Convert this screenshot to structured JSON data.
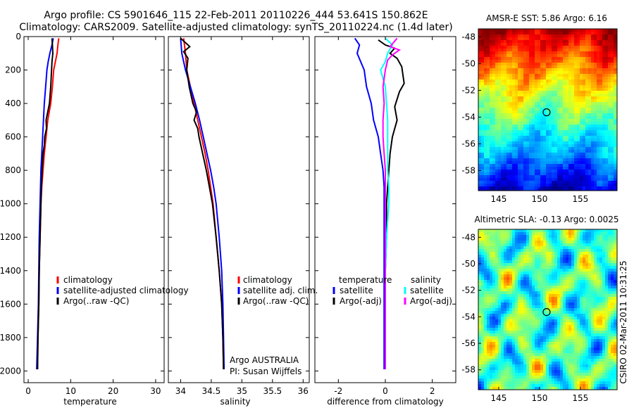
{
  "header": {
    "line1": "Argo profile: CS 5901646_115 22-Feb-2011 20110226_444 53.641S 150.862E",
    "line2": "Climatology: CARS2009. Satellite-adjusted climatology: synTS_20110224.nc (1.4d later)"
  },
  "colors": {
    "red": "#ff0000",
    "blue": "#0000ff",
    "black": "#000000",
    "cyan": "#00ffff",
    "magenta": "#ff00ff"
  },
  "chart_data": [
    {
      "type": "line",
      "id": "temperature",
      "xlabel": "temperature",
      "ylabel": "",
      "xlim": [
        -1,
        32
      ],
      "ylim": [
        2070,
        0
      ],
      "xticks": [
        0,
        10,
        20,
        30
      ],
      "xtick_labels": [
        "0",
        "10",
        "20",
        "30"
      ],
      "yticks": [
        0,
        200,
        400,
        600,
        800,
        1000,
        1200,
        1400,
        1600,
        1800,
        2000
      ],
      "ytick_labels": [
        "0",
        "200",
        "400",
        "600",
        "800",
        "1000",
        "1200",
        "1400",
        "1600",
        "1800",
        "2000"
      ],
      "legend": [
        {
          "label": "climatology",
          "color": "red"
        },
        {
          "label": "satellite-adjusted climatology",
          "color": "blue"
        },
        {
          "label": "Argo(..raw -QC)",
          "color": "black"
        }
      ],
      "series": [
        {
          "name": "climatology",
          "color": "red",
          "points": [
            [
              7.2,
              10
            ],
            [
              7.0,
              50
            ],
            [
              6.8,
              100
            ],
            [
              6.4,
              150
            ],
            [
              6.0,
              200
            ],
            [
              5.7,
              300
            ],
            [
              5.3,
              400
            ],
            [
              4.6,
              500
            ],
            [
              4.2,
              600
            ],
            [
              3.8,
              700
            ],
            [
              3.5,
              800
            ],
            [
              3.2,
              900
            ],
            [
              3.0,
              1000
            ],
            [
              2.8,
              1200
            ],
            [
              2.6,
              1400
            ],
            [
              2.5,
              1600
            ],
            [
              2.3,
              1800
            ],
            [
              2.2,
              1990
            ]
          ]
        },
        {
          "name": "satellite-adjusted climatology",
          "color": "blue",
          "points": [
            [
              5.9,
              10
            ],
            [
              5.6,
              50
            ],
            [
              5.1,
              100
            ],
            [
              4.7,
              150
            ],
            [
              4.4,
              200
            ],
            [
              4.1,
              300
            ],
            [
              3.8,
              400
            ],
            [
              3.6,
              500
            ],
            [
              3.4,
              600
            ],
            [
              3.2,
              700
            ],
            [
              3.0,
              800
            ],
            [
              2.9,
              900
            ],
            [
              2.8,
              1000
            ],
            [
              2.6,
              1200
            ],
            [
              2.5,
              1400
            ],
            [
              2.4,
              1600
            ],
            [
              2.2,
              1800
            ],
            [
              2.0,
              1990
            ]
          ]
        },
        {
          "name": "Argo(..raw -QC)",
          "color": "black",
          "points": [
            [
              5.6,
              10
            ],
            [
              5.7,
              50
            ],
            [
              5.8,
              100
            ],
            [
              5.6,
              150
            ],
            [
              5.5,
              200
            ],
            [
              5.3,
              300
            ],
            [
              5.0,
              400
            ],
            [
              4.6,
              450
            ],
            [
              4.2,
              500
            ],
            [
              4.3,
              550
            ],
            [
              3.9,
              600
            ],
            [
              3.8,
              650
            ],
            [
              3.5,
              700
            ],
            [
              3.3,
              800
            ],
            [
              3.1,
              900
            ],
            [
              3.0,
              1000
            ],
            [
              2.8,
              1200
            ],
            [
              2.6,
              1400
            ],
            [
              2.5,
              1600
            ],
            [
              2.3,
              1800
            ],
            [
              2.2,
              1990
            ]
          ]
        }
      ]
    },
    {
      "type": "line",
      "id": "salinity",
      "xlabel": "salinity",
      "ylabel": "",
      "xlim": [
        33.8,
        36.1
      ],
      "ylim": [
        2070,
        0
      ],
      "xticks": [
        34,
        34.5,
        35,
        35.5,
        36
      ],
      "xtick_labels": [
        "34",
        "34.5",
        "35",
        "35.5",
        "36"
      ],
      "yticks": [
        0,
        200,
        400,
        600,
        800,
        1000,
        1200,
        1400,
        1600,
        1800,
        2000
      ],
      "ytick_labels": [],
      "legend": [
        {
          "label": "climatology",
          "color": "red"
        },
        {
          "label": "satellite adj. clim.",
          "color": "blue"
        },
        {
          "label": "Argo(..raw -QC)",
          "color": "black"
        }
      ],
      "annotations": [
        "Argo AUSTRALIA",
        "PI: Susan Wijffels"
      ],
      "series": [
        {
          "name": "climatology",
          "color": "red",
          "points": [
            [
              34.05,
              10
            ],
            [
              34.08,
              100
            ],
            [
              34.1,
              200
            ],
            [
              34.16,
              300
            ],
            [
              34.22,
              400
            ],
            [
              34.28,
              500
            ],
            [
              34.34,
              600
            ],
            [
              34.4,
              700
            ],
            [
              34.45,
              800
            ],
            [
              34.49,
              900
            ],
            [
              34.53,
              1000
            ],
            [
              34.58,
              1200
            ],
            [
              34.63,
              1400
            ],
            [
              34.67,
              1600
            ],
            [
              34.69,
              1800
            ],
            [
              34.7,
              1990
            ]
          ]
        },
        {
          "name": "satellite adj. clim.",
          "color": "blue",
          "points": [
            [
              34.0,
              10
            ],
            [
              34.02,
              100
            ],
            [
              34.08,
              200
            ],
            [
              34.16,
              300
            ],
            [
              34.24,
              400
            ],
            [
              34.31,
              500
            ],
            [
              34.37,
              600
            ],
            [
              34.43,
              700
            ],
            [
              34.49,
              800
            ],
            [
              34.54,
              900
            ],
            [
              34.58,
              1000
            ],
            [
              34.63,
              1200
            ],
            [
              34.67,
              1400
            ],
            [
              34.69,
              1600
            ],
            [
              34.7,
              1800
            ],
            [
              34.71,
              1990
            ]
          ]
        },
        {
          "name": "Argo(..raw -QC)",
          "color": "black",
          "points": [
            [
              34.0,
              10
            ],
            [
              34.15,
              60
            ],
            [
              34.05,
              90
            ],
            [
              34.12,
              130
            ],
            [
              34.1,
              200
            ],
            [
              34.14,
              300
            ],
            [
              34.2,
              400
            ],
            [
              34.26,
              450
            ],
            [
              34.22,
              500
            ],
            [
              34.28,
              550
            ],
            [
              34.3,
              600
            ],
            [
              34.36,
              700
            ],
            [
              34.42,
              800
            ],
            [
              34.47,
              900
            ],
            [
              34.52,
              1000
            ],
            [
              34.58,
              1200
            ],
            [
              34.63,
              1400
            ],
            [
              34.67,
              1600
            ],
            [
              34.69,
              1800
            ],
            [
              34.7,
              1990
            ]
          ]
        }
      ]
    },
    {
      "type": "line",
      "id": "difference",
      "xlabel": "difference from climatology",
      "ylabel": "",
      "xlim": [
        -3.0,
        3.0
      ],
      "ylim": [
        2070,
        0
      ],
      "xticks": [
        -2,
        0,
        2
      ],
      "xtick_labels": [
        "-2",
        "0",
        "2"
      ],
      "yticks": [
        0,
        200,
        400,
        600,
        800,
        1000,
        1200,
        1400,
        1600,
        1800,
        2000
      ],
      "ytick_labels": [],
      "legend_left_title": "temperature",
      "legend_right_title": "salinity",
      "legend": [
        {
          "label": "satellite",
          "color": "blue",
          "group": "temperature"
        },
        {
          "label": "Argo(-adj)",
          "color": "black",
          "group": "temperature"
        },
        {
          "label": "satellite",
          "color": "cyan",
          "group": "salinity"
        },
        {
          "label": "Argo(-adj)",
          "color": "magenta",
          "group": "salinity"
        }
      ],
      "series": [
        {
          "name": "temperature satellite",
          "color": "blue",
          "points": [
            [
              -1.3,
              10
            ],
            [
              -1.1,
              50
            ],
            [
              -1.2,
              100
            ],
            [
              -0.9,
              200
            ],
            [
              -0.8,
              300
            ],
            [
              -0.6,
              400
            ],
            [
              -0.5,
              500
            ],
            [
              -0.3,
              600
            ],
            [
              -0.2,
              700
            ],
            [
              -0.1,
              800
            ],
            [
              -0.05,
              900
            ],
            [
              -0.05,
              1000
            ],
            [
              -0.05,
              1200
            ],
            [
              -0.05,
              1400
            ],
            [
              -0.05,
              1600
            ],
            [
              -0.05,
              1800
            ],
            [
              -0.05,
              1990
            ]
          ]
        },
        {
          "name": "temperature Argo(-adj)",
          "color": "black",
          "points": [
            [
              -0.3,
              20
            ],
            [
              0.0,
              50
            ],
            [
              0.4,
              70
            ],
            [
              0.2,
              100
            ],
            [
              0.5,
              130
            ],
            [
              0.7,
              180
            ],
            [
              0.8,
              280
            ],
            [
              0.6,
              330
            ],
            [
              0.4,
              420
            ],
            [
              0.5,
              500
            ],
            [
              0.3,
              600
            ],
            [
              0.2,
              700
            ],
            [
              0.15,
              800
            ],
            [
              0.1,
              900
            ],
            [
              0.05,
              1000
            ],
            [
              0.05,
              1200
            ],
            [
              0.0,
              1400
            ],
            [
              0.0,
              1600
            ],
            [
              0.0,
              1800
            ],
            [
              0.0,
              1990
            ]
          ]
        },
        {
          "name": "salinity satellite",
          "color": "cyan",
          "points": [
            [
              0.0,
              10
            ],
            [
              0.3,
              50
            ],
            [
              0.1,
              100
            ],
            [
              0.0,
              150
            ],
            [
              -0.2,
              200
            ],
            [
              0.0,
              300
            ],
            [
              0.05,
              400
            ],
            [
              0.1,
              500
            ],
            [
              0.1,
              600
            ],
            [
              0.1,
              700
            ],
            [
              0.1,
              800
            ],
            [
              0.15,
              900
            ],
            [
              0.15,
              1000
            ],
            [
              0.1,
              1100
            ],
            [
              0.05,
              1200
            ],
            [
              0.0,
              1400
            ],
            [
              0.0,
              1600
            ],
            [
              0.0,
              1800
            ],
            [
              0.0,
              1990
            ]
          ]
        },
        {
          "name": "salinity Argo(-adj)",
          "color": "magenta",
          "points": [
            [
              0.5,
              10
            ],
            [
              0.2,
              60
            ],
            [
              0.6,
              80
            ],
            [
              0.3,
              110
            ],
            [
              0.1,
              140
            ],
            [
              0.0,
              200
            ],
            [
              -0.1,
              300
            ],
            [
              -0.05,
              400
            ],
            [
              -0.1,
              500
            ],
            [
              -0.1,
              600
            ],
            [
              -0.05,
              700
            ],
            [
              0.0,
              800
            ],
            [
              0.0,
              900
            ],
            [
              0.0,
              1000
            ],
            [
              0.0,
              1200
            ],
            [
              0.0,
              1400
            ],
            [
              0.0,
              1600
            ],
            [
              0.0,
              1800
            ],
            [
              0.0,
              1990
            ]
          ]
        }
      ]
    },
    {
      "type": "heatmap",
      "id": "amsre-sst",
      "title": "AMSR-E SST: 5.86 Argo: 6.16",
      "xlim": [
        142.5,
        159.5
      ],
      "ylim": [
        -59.5,
        -47.4
      ],
      "xticks": [
        145,
        150,
        155
      ],
      "xtick_labels": [
        "145",
        "150",
        "155"
      ],
      "yticks": [
        -48,
        -50,
        -52,
        -54,
        -56,
        -58
      ],
      "ytick_labels": [
        "-48",
        "-50",
        "-52",
        "-54",
        "-56",
        "-58"
      ],
      "marker": [
        150.862,
        -53.641
      ],
      "colormap": "jet"
    },
    {
      "type": "heatmap",
      "id": "altimetric-sla",
      "title": "Altimetric SLA: -0.13 Argo: 0.0025",
      "xlim": [
        142.5,
        159.5
      ],
      "ylim": [
        -59.5,
        -47.4
      ],
      "xticks": [
        145,
        150,
        155
      ],
      "xtick_labels": [
        "145",
        "150",
        "155"
      ],
      "yticks": [
        -48,
        -50,
        -52,
        -54,
        -56,
        -58
      ],
      "ytick_labels": [
        "-48",
        "-50",
        "-52",
        "-54",
        "-56",
        "-58"
      ],
      "marker": [
        150.862,
        -53.641
      ],
      "colormap": "jet"
    }
  ],
  "side_caption": "CSIRO 02-Mar-2011 10:31:25"
}
